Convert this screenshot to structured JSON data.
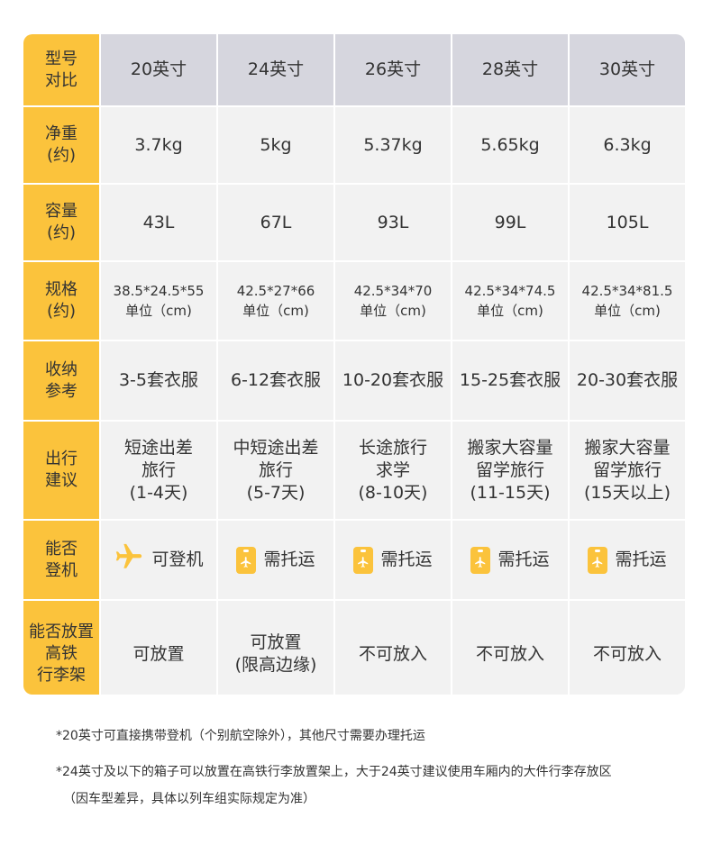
{
  "table": {
    "corner": [
      "型号",
      "对比"
    ],
    "columns": [
      "20英寸",
      "24英寸",
      "26英寸",
      "28英寸",
      "30英寸"
    ],
    "rows": [
      {
        "label": [
          "净重",
          "(约)"
        ],
        "cells": [
          [
            "3.7kg"
          ],
          [
            "5kg"
          ],
          [
            "5.37kg"
          ],
          [
            "5.65kg"
          ],
          [
            "6.3kg"
          ]
        ]
      },
      {
        "label": [
          "容量",
          "(约)"
        ],
        "cells": [
          [
            "43L"
          ],
          [
            "67L"
          ],
          [
            "93L"
          ],
          [
            "99L"
          ],
          [
            "105L"
          ]
        ]
      },
      {
        "label": [
          "规格",
          "(约)"
        ],
        "cells": [
          [
            "38.5*24.5*55",
            "单位（cm)"
          ],
          [
            "42.5*27*66",
            "单位（cm)"
          ],
          [
            "42.5*34*70",
            "单位（cm)"
          ],
          [
            "42.5*34*74.5",
            "单位（cm)"
          ],
          [
            "42.5*34*81.5",
            "单位（cm)"
          ]
        ]
      },
      {
        "label": [
          "收纳",
          "参考"
        ],
        "cells": [
          [
            "3-5套衣服"
          ],
          [
            "6-12套衣服"
          ],
          [
            "10-20套衣服"
          ],
          [
            "15-25套衣服"
          ],
          [
            "20-30套衣服"
          ]
        ]
      },
      {
        "label": [
          "出行",
          "建议"
        ],
        "cells": [
          [
            "短途出差",
            "旅行",
            "(1-4天)"
          ],
          [
            "中短途出差",
            "旅行",
            "(5-7天)"
          ],
          [
            "长途旅行",
            "求学",
            "(8-10天)"
          ],
          [
            "搬家大容量",
            "留学旅行",
            "(11-15天)"
          ],
          [
            "搬家大容量",
            "留学旅行",
            "(15天以上)"
          ]
        ]
      },
      {
        "label": [
          "能否",
          "登机"
        ],
        "cells": [
          [
            "可登机"
          ],
          [
            "需托运"
          ],
          [
            "需托运"
          ],
          [
            "需托运"
          ],
          [
            "需托运"
          ]
        ],
        "icons": [
          "airplane-icon",
          "luggage-tag-icon",
          "luggage-tag-icon",
          "luggage-tag-icon",
          "luggage-tag-icon"
        ]
      },
      {
        "label": [
          "能否放置",
          "高铁",
          "行李架"
        ],
        "cells": [
          [
            "可放置"
          ],
          [
            "可放置",
            "(限高边缘)"
          ],
          [
            "不可放入"
          ],
          [
            "不可放入"
          ],
          [
            "不可放入"
          ]
        ]
      }
    ]
  },
  "footnotes": [
    "*20英寸可直接携带登机（个别航空除外），其他尺寸需要办理托运",
    "*24英寸及以下的箱子可以放置在高铁行李放置架上，大于24英寸建议使用车厢内的大件行李存放区",
    "（因车型差异，具体以列车组实际规定为准）"
  ],
  "colors": {
    "accent": "#fbc33c",
    "header_gray": "#d6d6de",
    "cell_bg": "#f2f2f2"
  }
}
